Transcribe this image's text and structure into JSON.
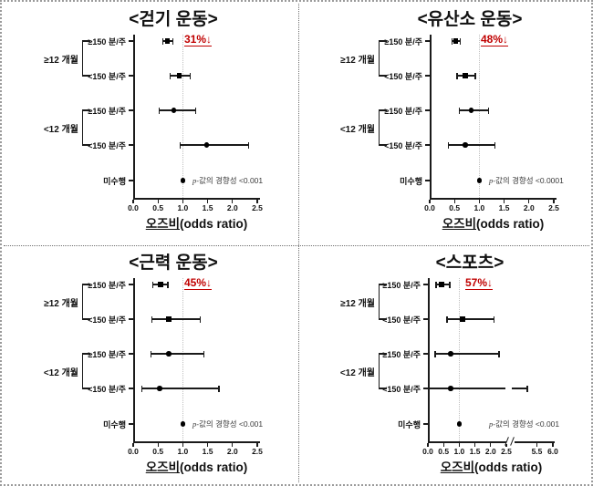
{
  "figure": {
    "xlabel_ko": "오즈비",
    "xlabel_en": "(odds ratio)",
    "colors": {
      "annotation_red": "#c00000",
      "axis_black": "#1a1a1a",
      "ref_line_gray": "#bfbfbf",
      "p_text_gray": "#3a3a3a",
      "border_gray": "#9a9a9a"
    }
  },
  "chart_data": [
    {
      "type": "forest",
      "id": "walking",
      "title": "<걷기 운동>",
      "annotation": "31%↓",
      "p_italic": "p",
      "p_rest": "-값의 경향성 <0.001",
      "ref_line": 1.0,
      "xlim": [
        0,
        2.5
      ],
      "groups": [
        {
          "label": "≥12 개월",
          "rows": [
            0,
            1
          ]
        },
        {
          "label": "<12 개월",
          "rows": [
            2,
            3
          ]
        }
      ],
      "rows": [
        {
          "label": "≥150 분/주",
          "or": 0.69,
          "ci": [
            0.6,
            0.8
          ],
          "marker": "square"
        },
        {
          "label": "<150 분/주",
          "or": 0.93,
          "ci": [
            0.74,
            1.15
          ],
          "marker": "square"
        },
        {
          "label": "≥150 분/주",
          "or": 0.82,
          "ci": [
            0.52,
            1.26
          ],
          "marker": "circle"
        },
        {
          "label": "<150 분/주",
          "or": 1.48,
          "ci": [
            0.95,
            2.32
          ],
          "marker": "circle"
        },
        {
          "label": "미수행",
          "or": 1.0,
          "ci": null,
          "marker": "circle"
        }
      ],
      "axis": {
        "ticks": [
          {
            "v": 0,
            "label": "0.0"
          },
          {
            "v": 0.5,
            "label": "0.5"
          },
          {
            "v": 1,
            "label": "1.0"
          },
          {
            "v": 1.5,
            "label": "1.5"
          },
          {
            "v": 2,
            "label": "2.0"
          },
          {
            "v": 2.5,
            "label": "2.5"
          }
        ]
      }
    },
    {
      "type": "forest",
      "id": "aerobic",
      "title": "<유산소 운동>",
      "annotation": "48%↓",
      "p_italic": "p",
      "p_rest": "-값의 경향성 <0.0001",
      "ref_line": 1.0,
      "xlim": [
        0,
        2.5
      ],
      "groups": [
        {
          "label": "≥12 개월",
          "rows": [
            0,
            1
          ]
        },
        {
          "label": "<12 개월",
          "rows": [
            2,
            3
          ]
        }
      ],
      "rows": [
        {
          "label": "≥150 분/주",
          "or": 0.52,
          "ci": [
            0.45,
            0.61
          ],
          "marker": "square"
        },
        {
          "label": "<150 분/주",
          "or": 0.72,
          "ci": [
            0.55,
            0.92
          ],
          "marker": "square"
        },
        {
          "label": "≥150 분/주",
          "or": 0.84,
          "ci": [
            0.6,
            1.19
          ],
          "marker": "circle"
        },
        {
          "label": "<150 분/주",
          "or": 0.72,
          "ci": [
            0.38,
            1.31
          ],
          "marker": "circle"
        },
        {
          "label": "미수행",
          "or": 1.0,
          "ci": null,
          "marker": "circle"
        }
      ],
      "axis": {
        "ticks": [
          {
            "v": 0,
            "label": "0.0"
          },
          {
            "v": 0.5,
            "label": "0.5"
          },
          {
            "v": 1,
            "label": "1.0"
          },
          {
            "v": 1.5,
            "label": "1.5"
          },
          {
            "v": 2,
            "label": "2.0"
          },
          {
            "v": 2.5,
            "label": "2.5"
          }
        ]
      }
    },
    {
      "type": "forest",
      "id": "strength",
      "title": "<근력 운동>",
      "annotation": "45%↓",
      "p_italic": "p",
      "p_rest": "-값의 경향성 <0.001",
      "ref_line": 1.0,
      "xlim": [
        0,
        2.5
      ],
      "groups": [
        {
          "label": "≥12 개월",
          "rows": [
            0,
            1
          ]
        },
        {
          "label": "<12 개월",
          "rows": [
            2,
            3
          ]
        }
      ],
      "rows": [
        {
          "label": "≥150 분/주",
          "or": 0.55,
          "ci": [
            0.4,
            0.7
          ],
          "marker": "square"
        },
        {
          "label": "<150 분/주",
          "or": 0.72,
          "ci": [
            0.38,
            1.35
          ],
          "marker": "square"
        },
        {
          "label": "≥150 분/주",
          "or": 0.72,
          "ci": [
            0.36,
            1.42
          ],
          "marker": "circle"
        },
        {
          "label": "<150 분/주",
          "or": 0.53,
          "ci": [
            0.18,
            1.73
          ],
          "marker": "circle"
        },
        {
          "label": "미수행",
          "or": 1.0,
          "ci": null,
          "marker": "circle"
        }
      ],
      "axis": {
        "ticks": [
          {
            "v": 0,
            "label": "0.0"
          },
          {
            "v": 0.5,
            "label": "0.5"
          },
          {
            "v": 1,
            "label": "1.0"
          },
          {
            "v": 1.5,
            "label": "1.5"
          },
          {
            "v": 2,
            "label": "2.0"
          },
          {
            "v": 2.5,
            "label": "2.5"
          }
        ]
      }
    },
    {
      "type": "forest",
      "id": "sports",
      "title": "<스포츠>",
      "annotation": "57%↓",
      "p_italic": "p",
      "p_rest": "-값의 경향성 <0.001",
      "ref_line": 1.0,
      "xlim": [
        0,
        6.0
      ],
      "axis_break": {
        "after": 2.5,
        "resume": 5.0
      },
      "groups": [
        {
          "label": "≥12 개월",
          "rows": [
            0,
            1
          ]
        },
        {
          "label": "<12 개월",
          "rows": [
            2,
            3
          ]
        }
      ],
      "rows": [
        {
          "label": "≥150 분/주",
          "or": 0.43,
          "ci": [
            0.26,
            0.7
          ],
          "marker": "square"
        },
        {
          "label": "<150 분/주",
          "or": 1.1,
          "ci": [
            0.61,
            2.1
          ],
          "marker": "square"
        },
        {
          "label": "≥150 분/주",
          "or": 0.73,
          "ci": [
            0.23,
            2.27
          ],
          "marker": "circle"
        },
        {
          "label": "<150 분/주",
          "or": 0.73,
          "ci": [
            0.05,
            5.2
          ],
          "marker": "circle",
          "broken": true
        },
        {
          "label": "미수행",
          "or": 1.0,
          "ci": null,
          "marker": "circle"
        }
      ],
      "axis": {
        "ticks": [
          {
            "v": 0,
            "label": "0.0"
          },
          {
            "v": 0.5,
            "label": "0.5"
          },
          {
            "v": 1,
            "label": "1.0"
          },
          {
            "v": 1.5,
            "label": "1.5"
          },
          {
            "v": 2,
            "label": "2.0"
          },
          {
            "v": 2.5,
            "label": "2.5"
          },
          {
            "v": 5.5,
            "label": "5.5"
          },
          {
            "v": 6,
            "label": "6.0"
          }
        ]
      }
    }
  ]
}
